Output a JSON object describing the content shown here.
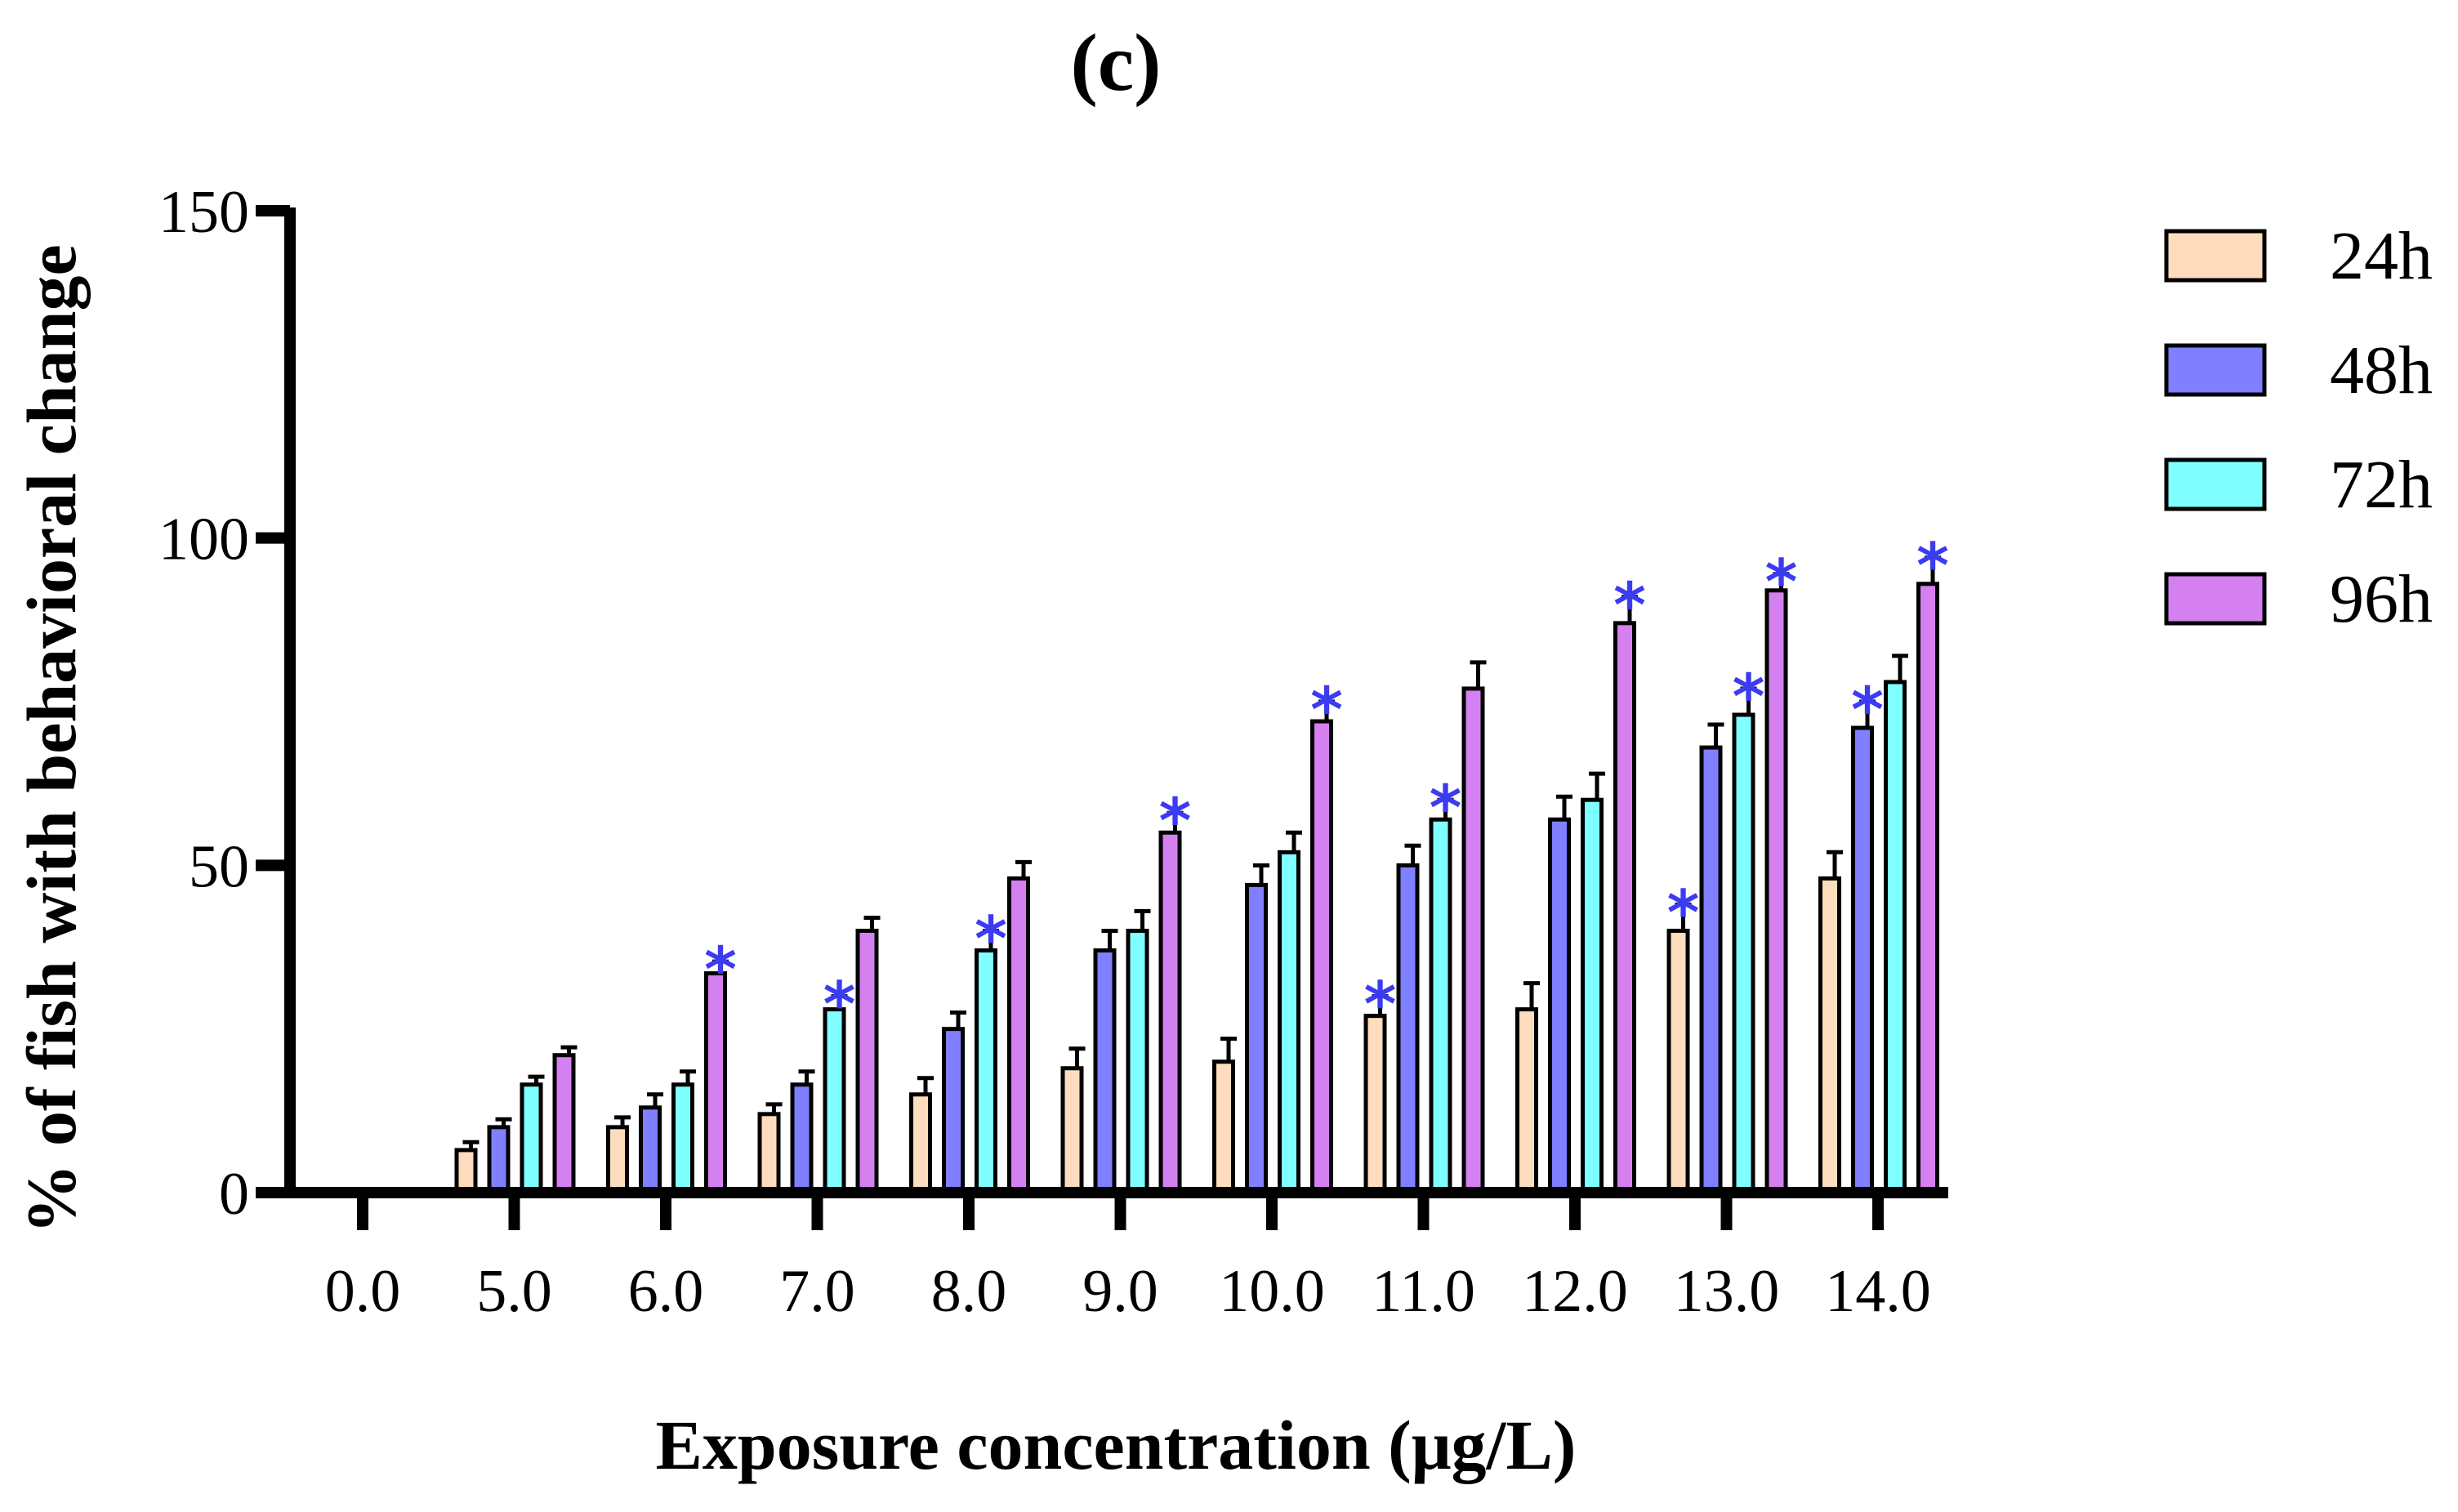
{
  "chart_data": {
    "type": "bar",
    "title": "(c)",
    "xlabel": "Exposure concentration (μg/L)",
    "ylabel": "% of fish with behavioral change",
    "ylim": [
      0,
      150
    ],
    "yticks": [
      0,
      50,
      100,
      150
    ],
    "categories": [
      "0.0",
      "5.0",
      "6.0",
      "7.0",
      "8.0",
      "9.0",
      "10.0",
      "11.0",
      "12.0",
      "13.0",
      "14.0"
    ],
    "series": [
      {
        "name": "24h",
        "color": "#FDDDBE",
        "values": [
          0,
          6.5,
          10,
          12,
          15,
          19,
          20,
          27,
          28,
          40,
          48
        ],
        "errors": [
          0,
          1.2,
          1.5,
          1.5,
          2.5,
          3,
          3.5,
          3,
          4,
          4,
          4
        ],
        "significant": [
          false,
          false,
          false,
          false,
          false,
          false,
          false,
          true,
          false,
          true,
          false
        ]
      },
      {
        "name": "48h",
        "color": "#7F7FFF",
        "values": [
          0,
          10,
          13,
          16.5,
          25,
          37,
          47,
          50,
          57,
          68,
          71
        ],
        "errors": [
          0,
          1.2,
          2,
          2,
          2.5,
          3,
          3,
          3,
          3.5,
          3.5,
          4
        ],
        "significant": [
          false,
          false,
          false,
          false,
          false,
          false,
          false,
          false,
          false,
          false,
          true
        ]
      },
      {
        "name": "72h",
        "color": "#7FFFFF",
        "values": [
          0,
          16.5,
          16.5,
          28,
          37,
          40,
          52,
          57,
          60,
          73,
          78
        ],
        "errors": [
          0,
          1.2,
          2,
          2,
          3,
          3,
          3,
          3,
          4,
          4,
          4
        ],
        "significant": [
          false,
          false,
          false,
          true,
          true,
          false,
          false,
          true,
          false,
          true,
          false
        ]
      },
      {
        "name": "96h",
        "color": "#D580F0",
        "values": [
          0,
          21,
          33.5,
          40,
          48,
          55,
          72,
          77,
          87,
          92,
          93
        ],
        "errors": [
          0,
          1.2,
          1.8,
          2,
          2.5,
          3,
          3,
          4,
          4,
          2.5,
          4
        ],
        "significant": [
          false,
          false,
          true,
          false,
          false,
          true,
          true,
          false,
          true,
          true,
          true
        ]
      }
    ],
    "significance_marker": "*",
    "significance_color": "#3B3BF2",
    "legend_position": "right"
  }
}
